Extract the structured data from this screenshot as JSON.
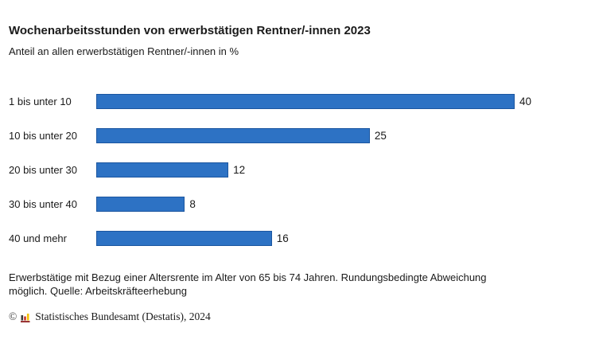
{
  "page": {
    "background": "#ffffff"
  },
  "chart": {
    "title": "Wochenarbeitsstunden von erwerbstätigen Rentner/-innen 2023",
    "subtitle": "Anteil an allen erwerbstätigen Rentner/-innen in %",
    "footnote": "Erwerbstätige mit Bezug einer Altersrente im Alter von 65 bis 74 Jahren. Rundungsbedingte Abweichung möglich. Quelle: Arbeitskräfteerhebung",
    "footer": {
      "copyright_symbol": "©",
      "logo_icon": "destatis-logo-icon",
      "publisher": "Statistisches Bundesamt (Destatis), 2024"
    },
    "colors": {
      "bar_fill": "#2d72c4",
      "bar_border": "#1b56a0",
      "text": "#1a1a1a",
      "logo_bar_dark": "#3c3c3b",
      "logo_bar_red": "#c5342f",
      "logo_bar_yellow": "#f5c200",
      "logo_baseline": "#8e1d1d"
    }
  },
  "chart_data": {
    "type": "bar",
    "orientation": "horizontal",
    "title": "Wochenarbeitsstunden von erwerbstätigen Rentner/-innen 2023",
    "subtitle": "Anteil an allen erwerbstätigen Rentner/-innen in %",
    "unit": "%",
    "categories": [
      "1 bis unter 10",
      "10 bis unter 20",
      "20 bis unter 30",
      "30 bis unter 40",
      "40 und mehr"
    ],
    "values": [
      40,
      25,
      12,
      8,
      16
    ],
    "value_axis_max": 40,
    "data_labels": true,
    "grid": false,
    "legend": false,
    "xlabel": "",
    "ylabel": ""
  }
}
